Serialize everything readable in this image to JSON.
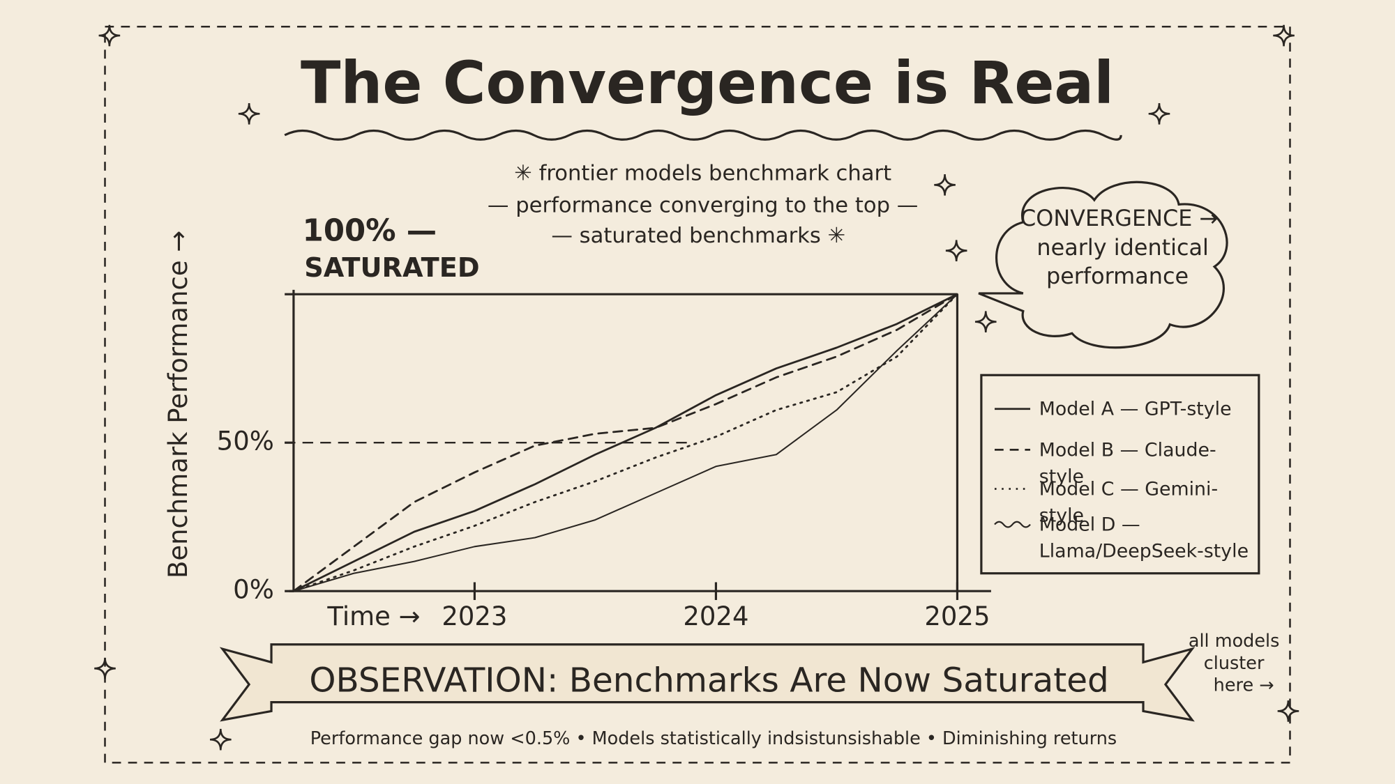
{
  "chart_data": {
    "type": "line",
    "title": "The Convergence is Real",
    "subtitle": [
      "✳ frontier models benchmark chart",
      "— performance converging to the top —",
      "— saturated benchmarks ✳"
    ],
    "ylabel": "Benchmark Performance →",
    "xlabel": "Time →",
    "annotation": "SATURATED",
    "callout": [
      "CONVERGENCE →",
      "nearly identical",
      "performance"
    ],
    "banner": "OBSERVATION: Benchmarks Are Now Saturated",
    "footer": "Performance gap now <0.5% • Models statistically indsistunsishable • Diminishing returns",
    "side_note": [
      "all models",
      "cluster",
      "here →"
    ],
    "x": [
      2022.25,
      2022.5,
      2022.75,
      2023,
      2023.25,
      2023.5,
      2023.75,
      2024,
      2024.25,
      2024.5,
      2024.75,
      2025
    ],
    "xlim": [
      2022.25,
      2025
    ],
    "xticks": [
      2023,
      2024,
      2025
    ],
    "ylim": [
      0,
      100
    ],
    "yticks": [
      {
        "value": 0,
        "label": "0%"
      },
      {
        "value": 50,
        "label": "50%"
      },
      {
        "value": 100,
        "label": "100% —"
      }
    ],
    "reference_line": 50,
    "legend": "right",
    "series": [
      {
        "name": "Model A — GPT-style",
        "color": "#2a2622",
        "style": "solid",
        "values": [
          0,
          10,
          20,
          27,
          36,
          46,
          55,
          66,
          75,
          82,
          90,
          100
        ]
      },
      {
        "name": "Model B — Claude-style",
        "color": "#2a2622",
        "style": "dashed",
        "values": [
          0,
          15,
          30,
          40,
          49,
          53,
          55,
          63,
          72,
          79,
          88,
          100
        ]
      },
      {
        "name": "Model C — Gemini-style",
        "color": "#2a2622",
        "style": "dotted",
        "values": [
          0,
          7,
          15,
          22,
          30,
          37,
          45,
          52,
          61,
          67,
          79,
          100
        ]
      },
      {
        "name": "Model D — Llama/DeepSeek-style",
        "color": "#2a2622",
        "style": "wavy",
        "values": [
          0,
          6,
          10,
          15,
          18,
          24,
          33,
          42,
          46,
          61,
          81,
          100
        ]
      }
    ]
  }
}
